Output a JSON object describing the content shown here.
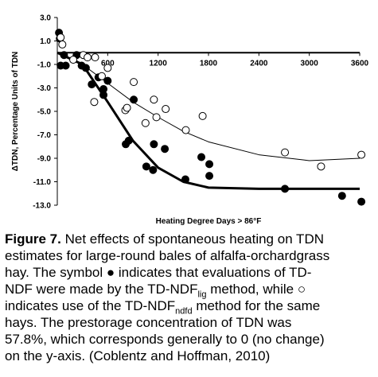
{
  "chart_data": {
    "type": "scatter",
    "xlabel": "Heating Degree Days > 86°F",
    "ylabel": "ΔTDN, Percentage Units of TDN",
    "xlim": [
      0,
      3600
    ],
    "ylim": [
      -13,
      3
    ],
    "xticks": [
      600,
      1200,
      1800,
      2400,
      3000,
      3600
    ],
    "yticks": [
      {
        "value": 3,
        "label": "3.0"
      },
      {
        "value": 1,
        "label": "1.0"
      },
      {
        "value": -1,
        "label": "-1.0"
      },
      {
        "value": -3,
        "label": "-3.0"
      },
      {
        "value": -5,
        "label": "-5.0"
      },
      {
        "value": -7,
        "label": "-7.0"
      },
      {
        "value": -9,
        "label": "-9.0"
      },
      {
        "value": -11,
        "label": "-11.0"
      },
      {
        "value": -13,
        "label": "-13.0"
      }
    ],
    "series": [
      {
        "marker": "filled",
        "color": "#000000",
        "x": [
          20,
          30,
          40,
          80,
          100,
          230,
          290,
          340,
          410,
          490,
          550,
          550,
          600,
          815,
          850,
          910,
          1060,
          1140,
          1150,
          1280,
          1525,
          1715,
          1810,
          1810,
          2710,
          3390,
          3620
        ],
        "values": [
          1.7,
          1.2,
          -1.1,
          -0.2,
          -1.1,
          -0.2,
          -1.1,
          -1.3,
          -2.7,
          -2.1,
          -3.1,
          -3.6,
          -2.4,
          -7.8,
          -7.5,
          -4.0,
          -9.7,
          -10.0,
          -7.8,
          -8.2,
          -10.8,
          -8.9,
          -9.5,
          -10.5,
          -11.6,
          -12.2,
          -12.7
        ]
      },
      {
        "marker": "open",
        "color": "#000000",
        "x": [
          40,
          60,
          190,
          310,
          360,
          450,
          530,
          600,
          440,
          810,
          830,
          910,
          1050,
          1150,
          1180,
          1290,
          1530,
          1730,
          2710,
          3140,
          3620
        ],
        "values": [
          1.3,
          0.7,
          -0.6,
          -0.2,
          -0.4,
          -0.4,
          -2.0,
          -1.3,
          -4.2,
          -4.9,
          -4.7,
          -2.5,
          -6.0,
          -4.0,
          -5.5,
          -4.8,
          -6.6,
          -5.4,
          -8.5,
          -9.7,
          -8.7
        ]
      }
    ],
    "fits": [
      {
        "color": "#000000",
        "width": 3,
        "x": [
          0,
          300,
          600,
          900,
          1200,
          1500,
          1800,
          2400,
          3600
        ],
        "values": [
          0,
          -1,
          -4.2,
          -7.5,
          -9.8,
          -11,
          -11.5,
          -11.6,
          -11.6
        ]
      },
      {
        "color": "#000000",
        "width": 1,
        "x": [
          0,
          300,
          600,
          900,
          1200,
          1500,
          1800,
          2400,
          3000,
          3600
        ],
        "values": [
          0,
          -1,
          -2.6,
          -4.2,
          -5.5,
          -6.7,
          -7.6,
          -8.7,
          -9.2,
          -9.0
        ]
      }
    ]
  },
  "caption": {
    "label": "Figure 7.",
    "lines": [
      [
        " Net effects of spontaneous heating on TDN"
      ],
      [
        "estimates for large-round bales of alfalfa-orchardgrass"
      ],
      [
        "hay. The symbol ● indicates that evaluations of TD-"
      ],
      [
        "NDF were made by the TD-NDF",
        "lig",
        " method, while ○"
      ],
      [
        "indicates use of the TD-NDF",
        "ndfd",
        " method for the same"
      ],
      [
        "hays. The prestorage concentration of TDN was"
      ],
      [
        "57.8%, which corresponds generally to 0 (no change)"
      ],
      [
        "on the y-axis. (Coblentz and Hoffman, 2010)"
      ]
    ]
  }
}
